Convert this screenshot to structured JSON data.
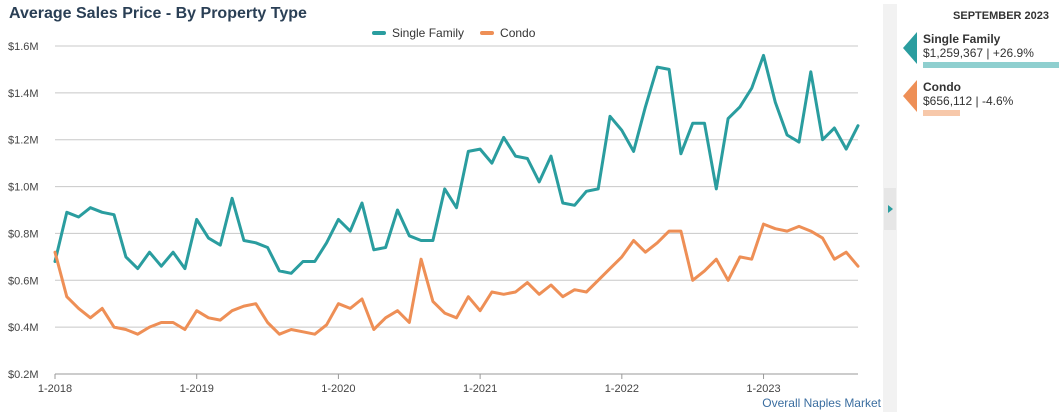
{
  "title": "Average Sales Price - By Property Type",
  "footer_link": "Overall Naples Market",
  "side_panel": {
    "month": "SEPTEMBER 2023",
    "items": [
      {
        "name": "Single Family",
        "value": "$1,259,367 | +26.9%",
        "color": "#2a9d9f",
        "bar_color": "#8fcfcf",
        "bar_fraction": 1.0
      },
      {
        "name": "Condo",
        "value": "$656,112 | -4.6%",
        "color": "#ee8f56",
        "bar_color": "#f7c8aa",
        "bar_fraction": 0.27
      }
    ]
  },
  "chart_data": {
    "type": "line",
    "title": "Average Sales Price - By Property Type",
    "xlabel": "",
    "ylabel": "",
    "ylim": [
      200000,
      1600000
    ],
    "yticks": [
      {
        "value": 200000,
        "label": "$0.2M"
      },
      {
        "value": 400000,
        "label": "$0.4M"
      },
      {
        "value": 600000,
        "label": "$0.6M"
      },
      {
        "value": 800000,
        "label": "$0.8M"
      },
      {
        "value": 1000000,
        "label": "$1.0M"
      },
      {
        "value": 1200000,
        "label": "$1.2M"
      },
      {
        "value": 1400000,
        "label": "$1.4M"
      },
      {
        "value": 1600000,
        "label": "$1.6M"
      }
    ],
    "xticks": [
      {
        "index": 0,
        "label": "1-2018"
      },
      {
        "index": 12,
        "label": "1-2019"
      },
      {
        "index": 24,
        "label": "1-2020"
      },
      {
        "index": 36,
        "label": "1-2021"
      },
      {
        "index": 48,
        "label": "1-2022"
      },
      {
        "index": 60,
        "label": "1-2023"
      }
    ],
    "x_start": "1-2018",
    "x_end": "9-2023",
    "grid": true,
    "legend": "top-center",
    "series": [
      {
        "name": "Single Family",
        "color": "#2a9d9f",
        "values": [
          680000,
          890000,
          870000,
          910000,
          890000,
          880000,
          700000,
          650000,
          720000,
          660000,
          720000,
          650000,
          860000,
          780000,
          750000,
          950000,
          770000,
          760000,
          740000,
          640000,
          630000,
          680000,
          680000,
          760000,
          860000,
          810000,
          930000,
          730000,
          740000,
          900000,
          790000,
          770000,
          770000,
          990000,
          910000,
          1150000,
          1160000,
          1100000,
          1210000,
          1130000,
          1120000,
          1020000,
          1130000,
          930000,
          920000,
          980000,
          990000,
          1300000,
          1240000,
          1150000,
          1340000,
          1510000,
          1500000,
          1140000,
          1270000,
          1270000,
          990000,
          1290000,
          1340000,
          1420000,
          1560000,
          1360000,
          1220000,
          1190000,
          1490000,
          1200000,
          1250000,
          1160000,
          1260000
        ]
      },
      {
        "name": "Condo",
        "color": "#ee8f56",
        "values": [
          720000,
          530000,
          480000,
          440000,
          480000,
          400000,
          390000,
          370000,
          400000,
          420000,
          420000,
          390000,
          470000,
          440000,
          430000,
          470000,
          490000,
          500000,
          420000,
          370000,
          390000,
          380000,
          370000,
          410000,
          500000,
          480000,
          520000,
          390000,
          440000,
          470000,
          420000,
          690000,
          510000,
          460000,
          440000,
          530000,
          470000,
          550000,
          540000,
          550000,
          590000,
          540000,
          580000,
          530000,
          560000,
          550000,
          600000,
          650000,
          700000,
          770000,
          720000,
          760000,
          810000,
          810000,
          600000,
          640000,
          690000,
          600000,
          700000,
          690000,
          840000,
          820000,
          810000,
          830000,
          810000,
          780000,
          690000,
          720000,
          660000
        ]
      }
    ]
  }
}
